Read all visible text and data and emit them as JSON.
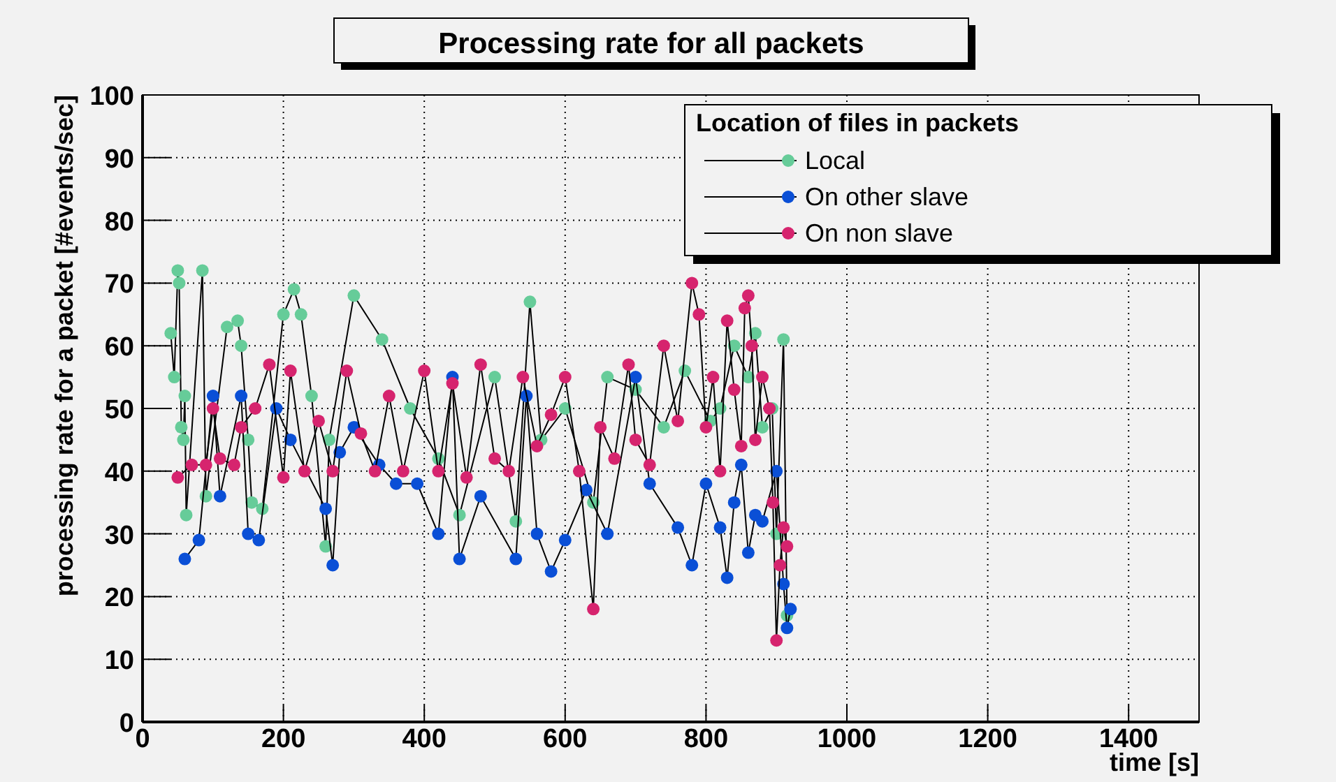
{
  "chart_data": {
    "type": "line",
    "title": "Processing rate for all packets",
    "xlabel": "time [s]",
    "ylabel": "processing rate for a packet [#events/sec]",
    "legend_title": "Location of files in packets",
    "xlim": [
      0,
      1500
    ],
    "xticks": [
      0,
      200,
      400,
      600,
      800,
      1000,
      1200,
      1400
    ],
    "ylim": [
      0,
      100
    ],
    "yticks": [
      0,
      10,
      20,
      30,
      40,
      50,
      60,
      70,
      80,
      90,
      100
    ],
    "grid": true,
    "legend": "top right",
    "marker": "circle",
    "series": [
      {
        "name": "Local",
        "color": "#66cc99",
        "x": [
          40,
          45,
          50,
          52,
          55,
          58,
          60,
          62,
          85,
          90,
          120,
          135,
          140,
          150,
          155,
          170,
          200,
          215,
          225,
          240,
          260,
          265,
          300,
          340,
          380,
          420,
          450,
          500,
          530,
          550,
          566,
          600,
          640,
          660,
          700,
          740,
          770,
          806,
          820,
          840,
          860,
          870,
          880,
          894,
          900,
          910,
          915
        ],
        "values": [
          62,
          55,
          72,
          70,
          47,
          45,
          52,
          33,
          72,
          36,
          63,
          64,
          60,
          45,
          35,
          34,
          65,
          69,
          65,
          52,
          28,
          45,
          68,
          61,
          50,
          42,
          33,
          55,
          32,
          67,
          45,
          50,
          35,
          55,
          53,
          47,
          56,
          48,
          50,
          60,
          55,
          62,
          47,
          50,
          30,
          61,
          17
        ]
      },
      {
        "name": "On other slave",
        "color": "#0a4fd6",
        "x": [
          60,
          80,
          100,
          110,
          140,
          150,
          165,
          190,
          210,
          260,
          270,
          280,
          300,
          336,
          360,
          390,
          420,
          440,
          450,
          480,
          530,
          545,
          560,
          580,
          600,
          630,
          660,
          700,
          720,
          760,
          780,
          800,
          820,
          830,
          840,
          850,
          860,
          870,
          880,
          900,
          910,
          915,
          920
        ],
        "values": [
          26,
          29,
          52,
          36,
          52,
          30,
          29,
          50,
          45,
          34,
          25,
          43,
          47,
          41,
          38,
          38,
          30,
          55,
          26,
          36,
          26,
          52,
          30,
          24,
          29,
          37,
          30,
          55,
          38,
          31,
          25,
          38,
          31,
          23,
          35,
          41,
          27,
          33,
          32,
          40,
          22,
          15,
          18
        ]
      },
      {
        "name": "On non slave",
        "color": "#d6246e",
        "x": [
          50,
          70,
          90,
          100,
          110,
          130,
          140,
          160,
          180,
          200,
          210,
          230,
          250,
          270,
          290,
          310,
          330,
          350,
          370,
          400,
          420,
          440,
          460,
          480,
          500,
          520,
          540,
          560,
          580,
          600,
          620,
          640,
          650,
          670,
          690,
          700,
          720,
          740,
          760,
          780,
          790,
          800,
          810,
          820,
          830,
          840,
          850,
          855,
          860,
          865,
          870,
          880,
          890,
          895,
          900,
          905,
          910,
          915
        ],
        "values": [
          39,
          41,
          41,
          50,
          42,
          41,
          47,
          50,
          57,
          39,
          56,
          40,
          48,
          40,
          56,
          46,
          40,
          52,
          40,
          56,
          40,
          54,
          39,
          57,
          42,
          40,
          55,
          44,
          49,
          55,
          40,
          18,
          47,
          42,
          57,
          45,
          41,
          60,
          48,
          70,
          65,
          47,
          55,
          40,
          64,
          53,
          44,
          66,
          68,
          60,
          45,
          55,
          50,
          35,
          13,
          25,
          31,
          28
        ]
      }
    ]
  }
}
